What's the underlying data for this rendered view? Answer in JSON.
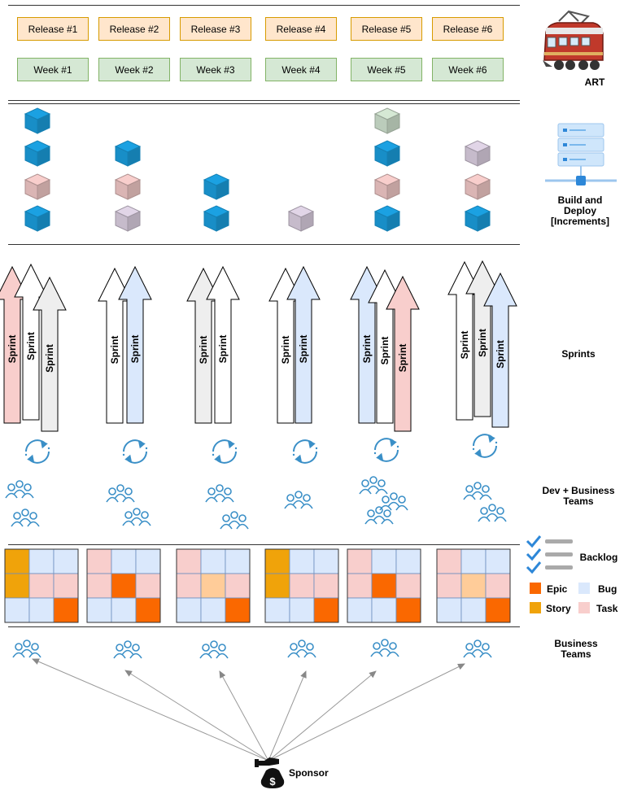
{
  "releases": [
    "Release #1",
    "Release #2",
    "Release #3",
    "Release #4",
    "Release #5",
    "Release #6"
  ],
  "weeks": [
    "Week #1",
    "Week #2",
    "Week #3",
    "Week #4",
    "Week #5",
    "Week #6"
  ],
  "labels": {
    "art": "ART",
    "build_line1": "Build and",
    "build_line2": "Deploy",
    "build_line3": "[Increments]",
    "sprints": "Sprints",
    "dev_line1": "Dev + Business",
    "dev_line2": "Teams",
    "backlog": "Backlog",
    "business_line1": "Business",
    "business_line2": "Teams",
    "sponsor": "Sponsor"
  },
  "legend": [
    {
      "label": "Epic",
      "color": "#fa6800"
    },
    {
      "label": "Bug",
      "color": "#dae8fc"
    },
    {
      "label": "Story",
      "color": "#f0a30a"
    },
    {
      "label": "Task",
      "color": "#f8cecc"
    }
  ],
  "sprint_label": "Sprint",
  "colors": {
    "cube_blue": "#1ba1e2",
    "cube_red": "#f8cecc",
    "cube_purple": "#e1d5e7",
    "cube_green": "#d5e8d4",
    "arrow_red": "#f8cecc",
    "arrow_white": "#ffffff",
    "arrow_gray": "#eeeeee",
    "arrow_blue": "#dae8fc",
    "icon_blue": "#3a8fc7"
  },
  "cube_columns": [
    [
      "blue",
      "red",
      "blue",
      "blue"
    ],
    [
      "purple",
      "red",
      "blue"
    ],
    [
      "blue",
      "blue"
    ],
    [
      "purple"
    ],
    [
      "blue",
      "red",
      "blue",
      "green"
    ],
    [
      "blue",
      "red",
      "purple"
    ]
  ],
  "sprint_columns": [
    [
      "red",
      "white",
      "gray"
    ],
    [
      "white",
      "blue"
    ],
    [
      "gray",
      "white"
    ],
    [
      "white",
      "blue"
    ],
    [
      "blue",
      "white",
      "red"
    ],
    [
      "white",
      "gray",
      "blue"
    ]
  ],
  "backlog_grids": [
    [
      [
        "story",
        "bug",
        "bug"
      ],
      [
        "story",
        "task",
        "task"
      ],
      [
        "bug",
        "bug",
        "epic"
      ]
    ],
    [
      [
        "task",
        "bug",
        "bug"
      ],
      [
        "task",
        "epic",
        "task"
      ],
      [
        "bug",
        "bug",
        "epic"
      ]
    ],
    [
      [
        "task",
        "bug",
        "bug"
      ],
      [
        "task",
        "story_light",
        "task"
      ],
      [
        "bug",
        "bug",
        "epic"
      ]
    ],
    [
      [
        "story",
        "bug",
        "bug"
      ],
      [
        "story",
        "task",
        "task"
      ],
      [
        "bug",
        "bug",
        "epic"
      ]
    ],
    [
      [
        "task",
        "bug",
        "bug"
      ],
      [
        "task",
        "epic",
        "task"
      ],
      [
        "bug",
        "bug",
        "epic"
      ]
    ],
    [
      [
        "task",
        "bug",
        "bug"
      ],
      [
        "task",
        "story_light",
        "task"
      ],
      [
        "bug",
        "bug",
        "epic"
      ]
    ]
  ]
}
